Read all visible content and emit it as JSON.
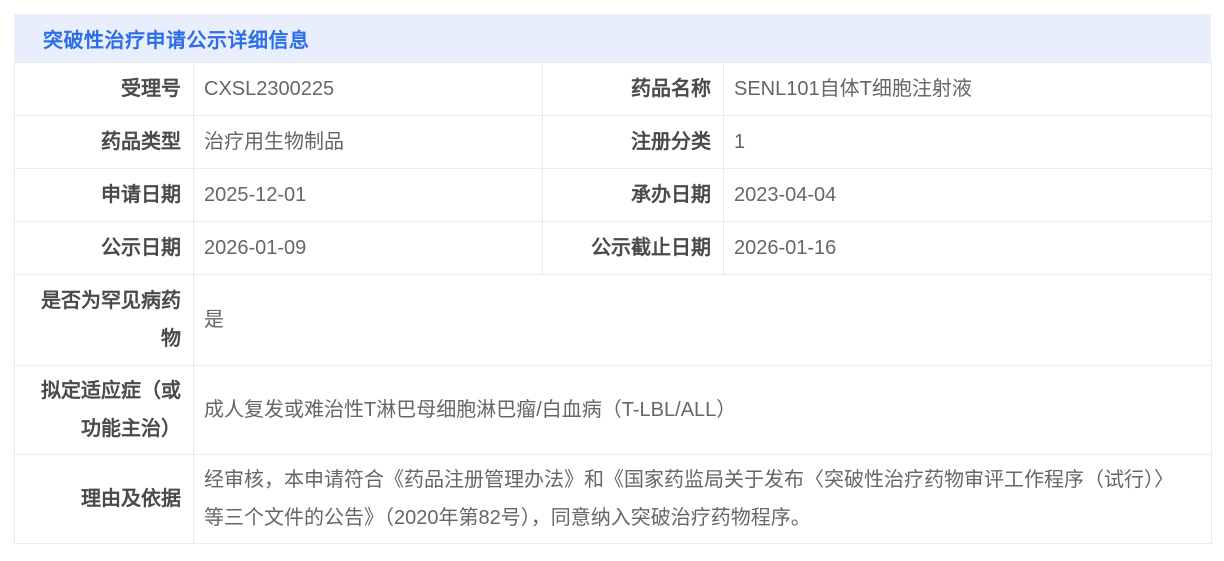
{
  "panel": {
    "title": "突破性治疗申请公示详细信息",
    "title_color": "#2d6ee8",
    "header_bg": "#e8eefb",
    "border_color": "#ebebeb",
    "label_color": "#4a4a4a",
    "value_color": "#666666"
  },
  "fields": {
    "acceptance_no": {
      "label": "受理号",
      "value": "CXSL2300225"
    },
    "drug_name": {
      "label": "药品名称",
      "value": "SENL101自体T细胞注射液"
    },
    "drug_type": {
      "label": "药品类型",
      "value": "治疗用生物制品"
    },
    "reg_category": {
      "label": "注册分类",
      "value": "1"
    },
    "apply_date": {
      "label": "申请日期",
      "value": "2025-12-01"
    },
    "undertake_date": {
      "label": "承办日期",
      "value": "2023-04-04"
    },
    "publicity_date": {
      "label": "公示日期",
      "value": "2026-01-09"
    },
    "publicity_end": {
      "label": "公示截止日期",
      "value": "2026-01-16"
    },
    "rare_disease": {
      "label": "是否为罕见病药物",
      "value": "是"
    },
    "indication": {
      "label": "拟定适应症（或功能主治）",
      "value": "成人复发或难治性T淋巴母细胞淋巴瘤/白血病（T-LBL/ALL）"
    },
    "reason": {
      "label": "理由及依据",
      "value": "经审核，本申请符合《药品注册管理办法》和《国家药监局关于发布〈突破性治疗药物审评工作程序（试行）〉等三个文件的公告》（2020年第82号），同意纳入突破治疗药物程序。"
    }
  }
}
